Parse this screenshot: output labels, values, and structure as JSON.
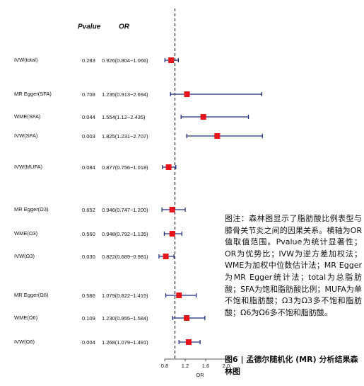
{
  "chart_data": {
    "type": "forest",
    "pvalue_header": "Pvalue",
    "or_header": "OR",
    "xlabel": "OR",
    "categories": [
      "IVW(total)",
      "MR Egger(SFA)",
      "WME(SFA)",
      "IVW(SFA)",
      "IVW(MUFA)",
      "MR Egger(Ω3)",
      "WME(Ω3)",
      "IVW(Ω3)",
      "MR Egger(Ω6)",
      "WME(Ω6)",
      "IVW(Ω6)"
    ],
    "pvalues": [
      "0.283",
      "0.708",
      "0.044",
      "0.003",
      "0.084",
      "0.652",
      "0.560",
      "0.030",
      "0.586",
      "0.109",
      "0.004"
    ],
    "values": [
      0.926,
      1.235,
      1.554,
      1.825,
      0.877,
      0.946,
      0.948,
      0.822,
      1.079,
      1.23,
      1.268
    ],
    "lower": [
      0.804,
      0.913,
      1.12,
      1.231,
      0.756,
      0.747,
      0.792,
      0.689,
      0.822,
      0.955,
      1.079
    ],
    "upper": [
      1.066,
      2.694,
      2.435,
      2.707,
      1.018,
      1.2,
      1.135,
      0.981,
      1.415,
      1.584,
      1.491
    ],
    "value_labels": [
      "0.926(0.804−1.066)",
      "1.235(0.913−2.694)",
      "1.554(1.12−2.435)",
      "1.825(1.231−2.707)",
      "0.877(0.756−1.018)",
      "0.946(0.747−1.200)",
      "0.948(0.792−1.135)",
      "0.822(0.689−0.981)",
      "1.079(0.822−1.415)",
      "1.230(0.955−1.584)",
      "1.268(1.079−1.491)"
    ],
    "point_color": "#e8141c",
    "ci_color": "#1f2d80",
    "refline": 1,
    "xlim": [
      0.6,
      2.8
    ],
    "xticks": [
      0.8,
      1.2,
      1.6,
      {
        "value": 2,
        "label": "2.0"
      }
    ]
  },
  "note": "图注：森林图显示了脂肪酸比例表型与膝骨关节炎之间的因果关系。横轴为OR值取值范围。Pvalue为统计显著性；OR为优势比；IVW为逆方差加权法；WME为加权中位数估计法；MR Egger为MR Egger统计法；total为总脂肪酸；SFA为饱和脂肪酸比例；MUFA为单不饱和脂肪酸；Ω3为Ω3多不饱和脂肪酸；Ω6为Ω6多不饱和脂肪酸。",
  "caption": "图6 | 孟德尔随机化 (MR) 分析结果森林图"
}
